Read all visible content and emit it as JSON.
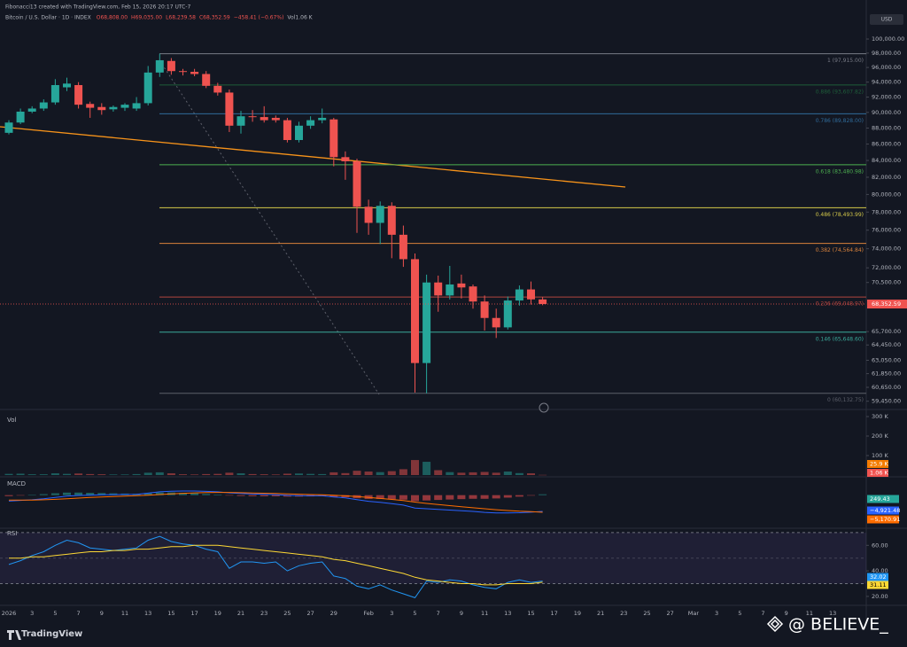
{
  "chart_data": {
    "type": "candlestick",
    "credit": "Fibonacci13 created with TradingView.com, Feb 15, 2026 20:17 UTC-7",
    "symbol": "Bitcoin / U.S. Dollar · 1D · INDEX",
    "ohlc_header": [
      "O68,808.00",
      "H69,035.00",
      "L68,239.58",
      "C68,352.59",
      "−458.41 (−0.67%)",
      "Vol1.06 K"
    ],
    "currency": "USD",
    "log_scale": true,
    "up_color": "#26a69a",
    "down_color": "#ef5350",
    "open": [
      87400,
      88700,
      90100,
      90500,
      91300,
      93300,
      93600,
      91100,
      90700,
      90400,
      90600,
      90500,
      91200,
      95300,
      96900,
      95500,
      95400,
      95100,
      93500,
      92600,
      88300,
      89500,
      89400,
      89300,
      89000,
      86500,
      88300,
      89000,
      89100,
      84400,
      83900,
      78600,
      76800,
      78700,
      75500,
      72900,
      62800,
      70500,
      69200,
      70400,
      70100,
      68600,
      67000,
      66100,
      68700,
      69800,
      68808
    ],
    "high": [
      89000,
      90500,
      90800,
      91700,
      94400,
      94600,
      94000,
      91400,
      91200,
      90900,
      91200,
      92000,
      96200,
      97915,
      97300,
      95800,
      95800,
      95500,
      93900,
      93000,
      90200,
      90300,
      90800,
      89600,
      89300,
      88800,
      89500,
      90500,
      89300,
      85100,
      84200,
      79400,
      79200,
      79100,
      76500,
      73500,
      71300,
      71200,
      72200,
      71300,
      70300,
      69200,
      67900,
      69100,
      70200,
      70600,
      69035
    ],
    "low": [
      87200,
      88500,
      89900,
      90200,
      91000,
      92800,
      90500,
      89300,
      89700,
      90100,
      90200,
      90200,
      90900,
      94700,
      95000,
      94900,
      94800,
      93200,
      92200,
      87500,
      87300,
      88800,
      88700,
      88700,
      86200,
      86200,
      87900,
      88600,
      83300,
      81700,
      75700,
      75500,
      74500,
      73000,
      72100,
      60200,
      60132.75,
      67600,
      68800,
      68900,
      67900,
      65800,
      65100,
      65900,
      68200,
      68300,
      68239.58
    ],
    "close": [
      88700,
      90100,
      90500,
      91300,
      93600,
      93800,
      91000,
      90600,
      90300,
      90700,
      91000,
      91200,
      95300,
      97000,
      95500,
      95400,
      95100,
      93500,
      92600,
      88300,
      89500,
      89400,
      89000,
      89000,
      86500,
      88300,
      89000,
      89300,
      84400,
      83900,
      78600,
      76800,
      78700,
      75500,
      72900,
      62800,
      70500,
      69200,
      70300,
      70000,
      68600,
      67000,
      66100,
      68700,
      69800,
      68811,
      68352.59
    ],
    "last_price_label": "68,352.59",
    "x_labels": [
      "2026",
      "3",
      "5",
      "7",
      "9",
      "11",
      "13",
      "15",
      "17",
      "19",
      "21",
      "23",
      "25",
      "27",
      "29",
      "Feb",
      "3",
      "5",
      "7",
      "9",
      "11",
      "13",
      "15",
      "17",
      "19",
      "21",
      "23",
      "25",
      "27",
      "Mar",
      "3",
      "5",
      "7",
      "9",
      "11",
      "13"
    ],
    "ylim": [
      58900,
      101800
    ],
    "yticks": [
      {
        "value": 100000,
        "label": "100,000.00"
      },
      {
        "value": 98000,
        "label": "98,000.00"
      },
      {
        "value": 96000,
        "label": "96,000.00"
      },
      {
        "value": 94000,
        "label": "94,000.00"
      },
      {
        "value": 92000,
        "label": "92,000.00"
      },
      {
        "value": 90000,
        "label": "90,000.00"
      },
      {
        "value": 88000,
        "label": "88,000.00"
      },
      {
        "value": 86000,
        "label": "86,000.00"
      },
      {
        "value": 84000,
        "label": "84,000.00"
      },
      {
        "value": 82000,
        "label": "82,000.00"
      },
      {
        "value": 80000,
        "label": "80,000.00"
      },
      {
        "value": 78000,
        "label": "78,000.00"
      },
      {
        "value": 76000,
        "label": "76,000.00"
      },
      {
        "value": 74000,
        "label": "74,000.00"
      },
      {
        "value": 72000,
        "label": "72,000.00"
      },
      {
        "value": 70500,
        "label": "70,500.00"
      },
      {
        "value": 65700,
        "label": "65,700.00"
      },
      {
        "value": 64450,
        "label": "64,450.00"
      },
      {
        "value": 63050,
        "label": "63,050.00"
      },
      {
        "value": 61850,
        "label": "61,850.00"
      },
      {
        "value": 60650,
        "label": "60,650.00"
      },
      {
        "value": 59450,
        "label": "59,450.00"
      }
    ],
    "fib_levels": [
      {
        "label": "1 (97,915.00)",
        "value": 97915.0,
        "color": "#787b86"
      },
      {
        "label": "0.886 (93,607.82)",
        "value": 93607.82,
        "color": "#1e5e3a"
      },
      {
        "label": "0.786 (89,828.00)",
        "value": 89828.0,
        "color": "#2f6b9a"
      },
      {
        "label": "0.618 (83,480.98)",
        "value": 83480.98,
        "color": "#4caf50"
      },
      {
        "label": "0.486 (78,493.99)",
        "value": 78493.99,
        "color": "#d4c84a"
      },
      {
        "label": "0.382 (74,564.84)",
        "value": 74564.84,
        "color": "#d9823b"
      },
      {
        "label": "0.236 (69,048.97)",
        "value": 69048.97,
        "color": "#b2453f"
      },
      {
        "label": "0.146 (65,648.60)",
        "value": 65648.6,
        "color": "#3aa99a"
      },
      {
        "label": "0 (60,132.75)",
        "value": 60132.75,
        "color": "#5d606b"
      }
    ],
    "volume": {
      "title": "Vol",
      "values": [
        6000,
        7000,
        4000,
        4000,
        9000,
        6000,
        8000,
        5000,
        4000,
        3000,
        3000,
        5000,
        12000,
        14000,
        9000,
        4000,
        3000,
        5000,
        6000,
        12000,
        9000,
        5000,
        4000,
        3000,
        7000,
        8000,
        6000,
        5000,
        14000,
        10000,
        22000,
        18000,
        15000,
        20000,
        30000,
        77000,
        68000,
        25000,
        15000,
        12000,
        14000,
        16000,
        12000,
        18000,
        10000,
        9000,
        1060
      ],
      "ma_label": "25.9 K",
      "last_label": "1.06 K",
      "ylim": [
        0,
        300000
      ],
      "yticks": [
        {
          "value": 300000,
          "label": "300 K"
        },
        {
          "value": 200000,
          "label": "200 K"
        },
        {
          "value": 100000,
          "label": "100 K"
        }
      ]
    },
    "macd": {
      "title": "MACD",
      "ylim": [
        -10000,
        5000
      ],
      "macd": {
        "color": "#2962ff",
        "values": [
          -1800,
          -1600,
          -1400,
          -1100,
          -700,
          -300,
          -100,
          0,
          100,
          150,
          200,
          250,
          600,
          1000,
          1200,
          1250,
          1250,
          1150,
          1000,
          700,
          500,
          350,
          250,
          150,
          -50,
          -150,
          -200,
          -200,
          -550,
          -850,
          -1350,
          -1850,
          -2150,
          -2550,
          -3000,
          -3900,
          -4100,
          -4300,
          -4500,
          -4700,
          -4900,
          -5200,
          -5400,
          -5400,
          -5300,
          -5150,
          -4921.48
        ],
        "label": "−4,921.48"
      },
      "signal": {
        "color": "#ff6d00",
        "values": [
          -1500,
          -1500,
          -1480,
          -1400,
          -1260,
          -1070,
          -880,
          -700,
          -540,
          -400,
          -280,
          -170,
          -20,
          190,
          390,
          560,
          700,
          790,
          830,
          810,
          750,
          670,
          590,
          500,
          390,
          280,
          180,
          100,
          -30,
          -190,
          -420,
          -700,
          -990,
          -1300,
          -1640,
          -2090,
          -2490,
          -2850,
          -3180,
          -3500,
          -3800,
          -4100,
          -4400,
          -4650,
          -4850,
          -5000,
          -5170.91
        ],
        "label": "−5,170.91"
      },
      "histogram": {
        "values": [
          -300,
          -100,
          80,
          300,
          560,
          770,
          780,
          700,
          640,
          550,
          480,
          420,
          620,
          810,
          810,
          690,
          550,
          360,
          170,
          -110,
          -250,
          -320,
          -340,
          -350,
          -440,
          -430,
          -380,
          -300,
          -520,
          -660,
          -930,
          -1150,
          -1160,
          -1250,
          -1360,
          -1810,
          -1610,
          -1450,
          -1320,
          -1200,
          -1100,
          -1100,
          -1000,
          -750,
          -450,
          -150,
          249.43
        ],
        "label": "249.43"
      }
    },
    "rsi": {
      "title": "RSI",
      "ylim": [
        13,
        72
      ],
      "bands": [
        70,
        50,
        30
      ],
      "yticks": [
        {
          "value": 60,
          "label": "60.00"
        },
        {
          "value": 40,
          "label": "40.00"
        },
        {
          "value": 20,
          "label": "20.00"
        }
      ],
      "rsi": {
        "color": "#2196f3",
        "values": [
          45,
          48,
          52,
          55,
          60,
          64,
          62,
          58,
          57,
          56,
          57,
          58,
          64,
          67,
          63,
          61,
          60,
          57,
          55,
          42,
          47,
          47,
          46,
          47,
          40,
          44,
          46,
          47,
          36,
          34,
          28,
          26,
          29,
          25,
          22,
          19,
          32,
          31,
          33,
          32,
          29,
          27,
          26,
          31,
          33,
          31,
          32.02
        ],
        "label": "32.02"
      },
      "ma": {
        "color": "#fdd835",
        "values": [
          50,
          50,
          51,
          51,
          52,
          53,
          54,
          55,
          55,
          56,
          56,
          57,
          57,
          58,
          59,
          59,
          60,
          60,
          60,
          59,
          58,
          57,
          56,
          55,
          54,
          53,
          52,
          51,
          49,
          48,
          46,
          44,
          42,
          40,
          38,
          35,
          33,
          32,
          31,
          30,
          30,
          29,
          29,
          30,
          30,
          30,
          31.11
        ],
        "label": "31.11"
      }
    },
    "brand": "TradingView",
    "watermark": "@ BELIEVE_"
  }
}
